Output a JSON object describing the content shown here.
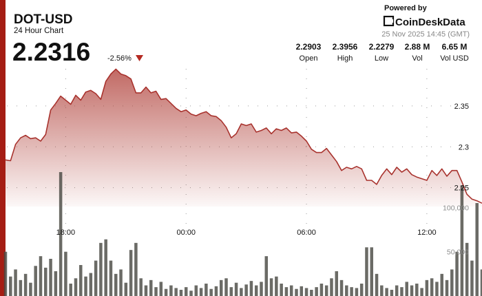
{
  "header": {
    "ticker": "DOT-USD",
    "subtitle": "24 Hour Chart",
    "price": "2.2316",
    "change": "-2.56%",
    "powered_by": "Powered by",
    "brand": "CoinDeskData",
    "timestamp": "25 Nov 2025 14:45 (GMT)",
    "stats": [
      {
        "value": "2.2903",
        "label": "Open"
      },
      {
        "value": "2.3956",
        "label": "High"
      },
      {
        "value": "2.2279",
        "label": "Low"
      },
      {
        "value": "2.88 M",
        "label": "Vol"
      },
      {
        "value": "6.65 M",
        "label": "Vol USD"
      }
    ]
  },
  "chart_data": {
    "type": "line",
    "xlim": [
      0,
      95
    ],
    "xticks": [
      {
        "value": 12,
        "label": "18:00"
      },
      {
        "value": 36,
        "label": "00:00"
      },
      {
        "value": 60,
        "label": "06:00"
      },
      {
        "value": 84,
        "label": "12:00"
      }
    ],
    "ylim": [
      2.227,
      2.429
    ],
    "yticks": [
      2.25,
      2.3,
      2.35
    ],
    "y2lim": [
      0,
      140000
    ],
    "y2ticks": [
      {
        "value": 50000,
        "label": "50,000"
      },
      {
        "value": 100000,
        "label": "100,000"
      }
    ],
    "grid": true,
    "series": [
      {
        "color": "#a8322d",
        "values": [
          2.284,
          2.283,
          2.303,
          2.311,
          2.314,
          2.31,
          2.311,
          2.307,
          2.315,
          2.345,
          2.353,
          2.362,
          2.357,
          2.352,
          2.363,
          2.357,
          2.367,
          2.369,
          2.365,
          2.358,
          2.38,
          2.389,
          2.395,
          2.389,
          2.387,
          2.383,
          2.366,
          2.366,
          2.373,
          2.366,
          2.368,
          2.358,
          2.359,
          2.353,
          2.347,
          2.343,
          2.345,
          2.34,
          2.338,
          2.341,
          2.343,
          2.338,
          2.337,
          2.332,
          2.324,
          2.311,
          2.316,
          2.328,
          2.326,
          2.328,
          2.318,
          2.32,
          2.323,
          2.316,
          2.322,
          2.32,
          2.323,
          2.317,
          2.318,
          2.313,
          2.307,
          2.297,
          2.293,
          2.293,
          2.298,
          2.29,
          2.282,
          2.271,
          2.275,
          2.273,
          2.276,
          2.273,
          2.259,
          2.259,
          2.254,
          2.265,
          2.273,
          2.266,
          2.275,
          2.269,
          2.273,
          2.266,
          2.263,
          2.261,
          2.259,
          2.271,
          2.265,
          2.273,
          2.264,
          2.271,
          2.271,
          2.257,
          2.242,
          2.236,
          2.234,
          2.231
        ]
      },
      {
        "type": "bar",
        "axis": "y2",
        "color": "#4a4a44",
        "values": [
          50000,
          22000,
          30000,
          18000,
          25000,
          15000,
          34000,
          45000,
          32000,
          42000,
          28000,
          140000,
          50000,
          14000,
          20000,
          35000,
          22000,
          26000,
          40000,
          60000,
          64000,
          40000,
          25000,
          30000,
          15000,
          52000,
          60000,
          20000,
          12000,
          18000,
          10000,
          16000,
          8000,
          12000,
          9000,
          7000,
          10000,
          6000,
          12000,
          9000,
          14000,
          8000,
          11000,
          18000,
          20000,
          10000,
          15000,
          9000,
          13000,
          17000,
          12000,
          16000,
          45000,
          20000,
          22000,
          14000,
          10000,
          12000,
          8000,
          11000,
          9000,
          7000,
          10000,
          14000,
          12000,
          20000,
          28000,
          18000,
          12000,
          10000,
          9000,
          14000,
          55000,
          55000,
          25000,
          12000,
          9000,
          7000,
          12000,
          10000,
          16000,
          12000,
          14000,
          9000,
          18000,
          20000,
          16000,
          25000,
          18000,
          30000,
          50000,
          125000,
          60000,
          40000,
          105000,
          30000
        ]
      }
    ]
  }
}
